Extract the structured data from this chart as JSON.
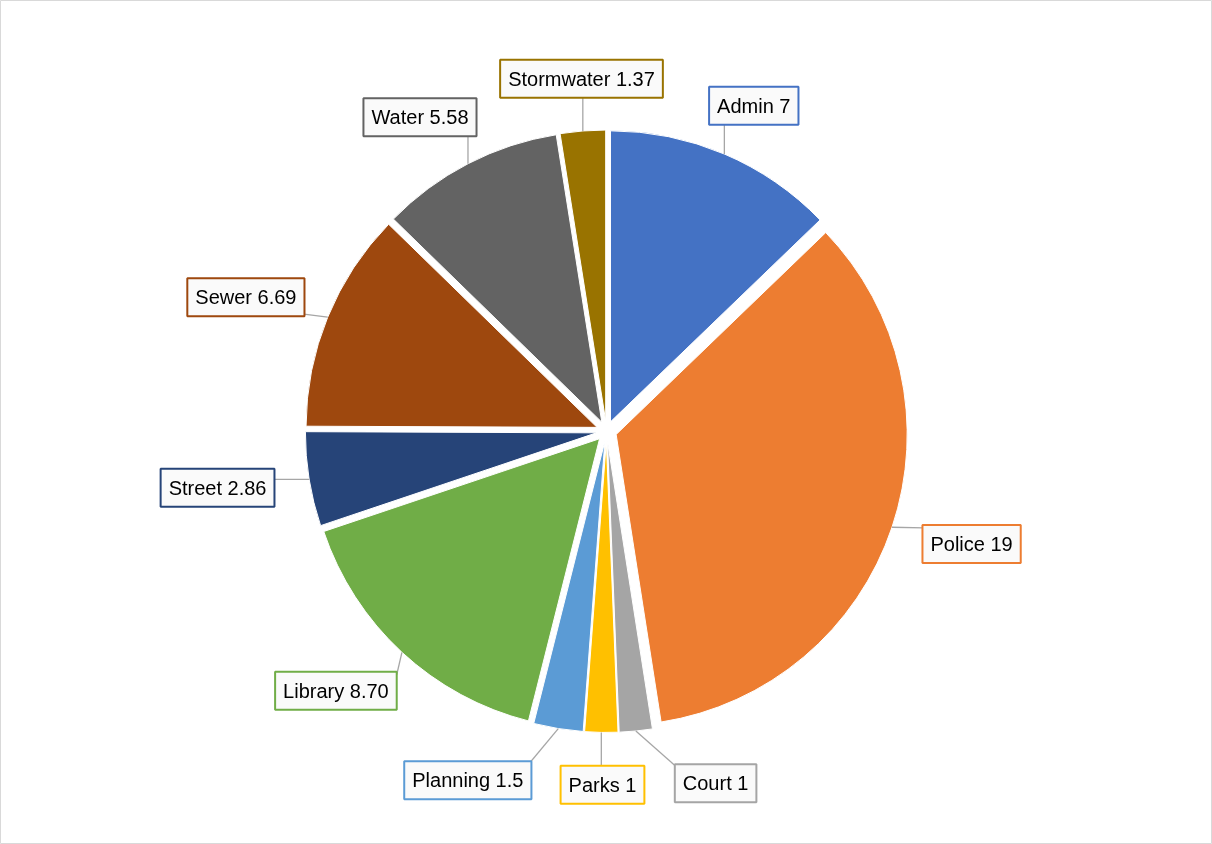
{
  "chart_data": {
    "type": "pie",
    "categories": [
      "Admin",
      "Police",
      "Court",
      "Parks",
      "Planning",
      "Library",
      "Street",
      "Sewer",
      "Water",
      "Stormwater"
    ],
    "values": [
      7,
      19,
      1,
      1,
      1.5,
      8.7,
      2.86,
      6.69,
      5.58,
      1.37
    ],
    "value_labels": [
      "7",
      "19",
      "1",
      "1",
      "1.5",
      "8.70",
      "2.86",
      "6.69",
      "5.58",
      "1.37"
    ],
    "colors": [
      "#4472c4",
      "#ed7d31",
      "#a5a5a5",
      "#ffc000",
      "#5b9bd5",
      "#70ad47",
      "#264478",
      "#9e480e",
      "#636363",
      "#997300"
    ]
  }
}
